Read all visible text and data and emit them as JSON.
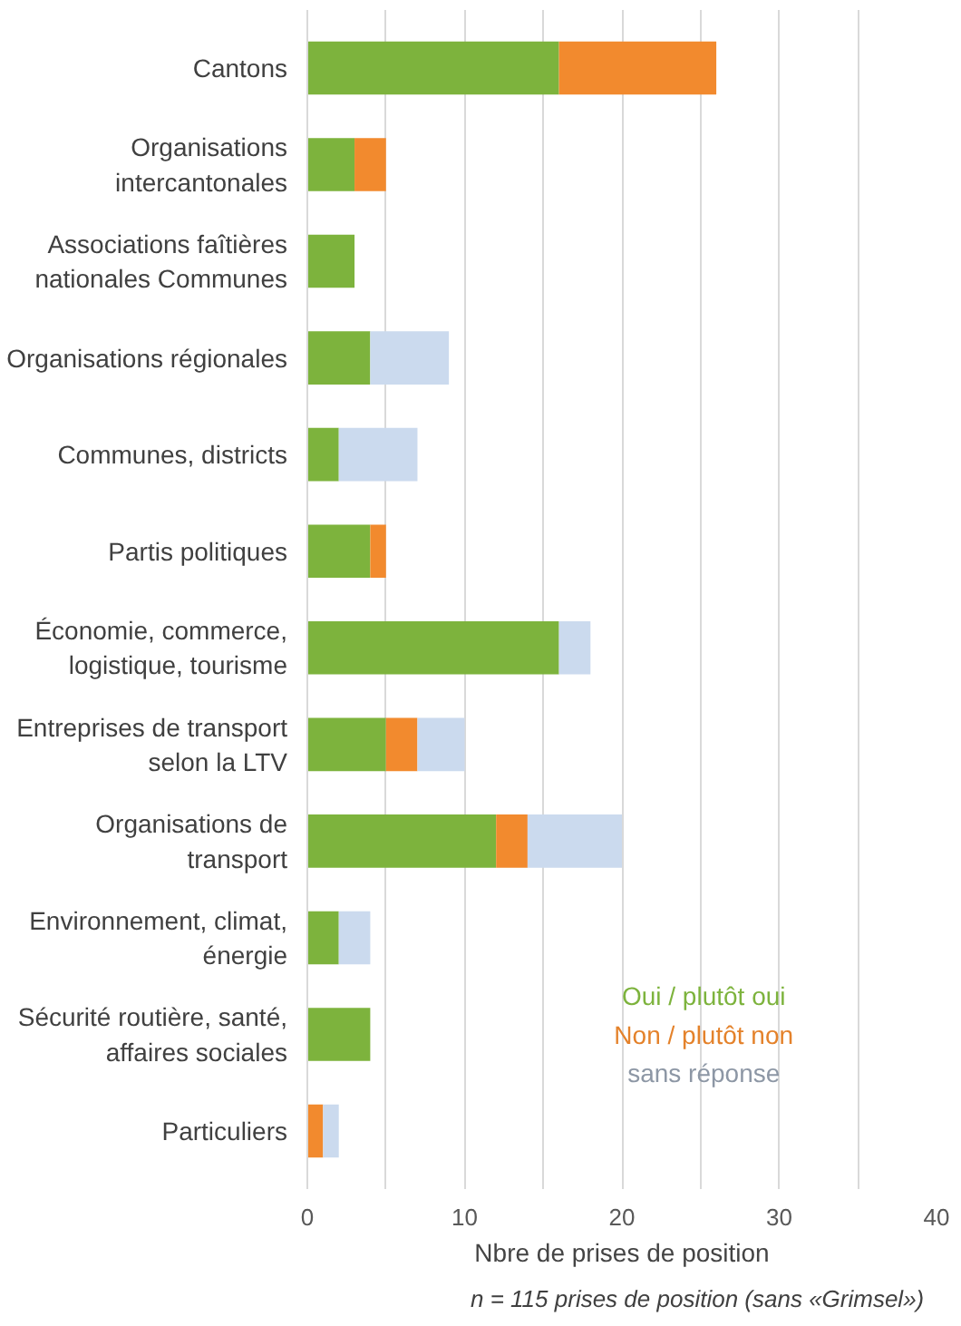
{
  "chart_data": {
    "type": "bar",
    "orientation": "horizontal",
    "stacked": true,
    "categories": [
      "Cantons",
      "Organisations intercantonales",
      "Associations faîtières nationales Communes",
      "Organisations régionales",
      "Communes, districts",
      "Partis politiques",
      "Économie, commerce, logistique, tourisme",
      "Entreprises de transport selon la LTV",
      "Organisations de transport",
      "Environnement, climat, énergie",
      "Sécurité routière, santé, affaires sociales",
      "Particuliers"
    ],
    "series": [
      {
        "name": "Oui / plutôt oui",
        "color": "#7db33d",
        "values": [
          16,
          3,
          3,
          4,
          2,
          4,
          16,
          5,
          12,
          2,
          4,
          null
        ]
      },
      {
        "name": "Non / plutôt non",
        "color": "#f28a2e",
        "values": [
          10,
          2,
          null,
          null,
          null,
          1,
          null,
          2,
          2,
          null,
          null,
          1
        ]
      },
      {
        "name": "sans réponse",
        "color": "#cbdaee",
        "values": [
          null,
          null,
          null,
          5,
          5,
          null,
          2,
          3,
          6,
          2,
          null,
          1
        ]
      }
    ],
    "xlim": [
      0,
      40
    ],
    "xticks": [
      0,
      {
        "value": 5,
        "label": null
      },
      10,
      {
        "value": 15,
        "label": null
      },
      20,
      {
        "value": 25,
        "label": null
      },
      30,
      {
        "value": 35,
        "label": null
      },
      40
    ],
    "grid": "x",
    "legend": "bottom right",
    "xlabel": "Nbre de prises de position",
    "annotations": [
      "n = 115 prises de position (sans «Grimsel»)"
    ]
  }
}
